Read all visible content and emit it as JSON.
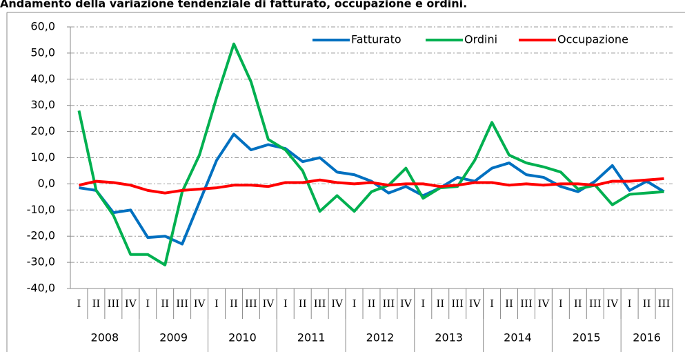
{
  "chart_data": {
    "type": "line",
    "title": "Andamento della variazione tendenziale di fatturato, occupazione e ordini.",
    "categories": [
      "I",
      "II",
      "III",
      "IV",
      "I",
      "II",
      "III",
      "IV",
      "I",
      "II",
      "III",
      "IV",
      "I",
      "II",
      "III",
      "IV",
      "I",
      "II",
      "III",
      "IV",
      "I",
      "II",
      "III",
      "IV",
      "I",
      "II",
      "III",
      "IV",
      "I",
      "II",
      "III",
      "IV",
      "I",
      "II",
      "III"
    ],
    "years": [
      "2008",
      "2009",
      "2010",
      "2011",
      "2012",
      "2013",
      "2014",
      "2015",
      "2016"
    ],
    "series": [
      {
        "name": "Fatturato",
        "color": "#0070c0",
        "values": [
          -1.5,
          -2.5,
          -11,
          -10,
          -20.5,
          -20,
          -23,
          -7,
          9,
          19,
          13,
          15,
          13.5,
          8.5,
          10,
          4.5,
          3.5,
          1,
          -3.5,
          -1,
          -4.5,
          -1.5,
          2.5,
          1,
          6,
          8,
          3.5,
          2.5,
          -1,
          -3,
          1,
          7,
          -2.5,
          1,
          -3
        ]
      },
      {
        "name": "Ordini",
        "color": "#00b050",
        "values": [
          28,
          -2.5,
          -12,
          -27,
          -27,
          -31,
          -3,
          11,
          33,
          53.5,
          39,
          17,
          13,
          5,
          -10.5,
          -4.5,
          -10.5,
          -3,
          -0.5,
          6,
          -5.5,
          -1.5,
          -1,
          9,
          23.5,
          11,
          8,
          6.5,
          4.5,
          -2,
          -0.5,
          -8,
          -4,
          -3.5,
          -3
        ]
      },
      {
        "name": "Occupazione",
        "color": "#ff0000",
        "values": [
          -0.5,
          1,
          0.5,
          -0.5,
          -2.5,
          -3.5,
          -2.5,
          -2,
          -1.5,
          -0.5,
          -0.5,
          -1,
          0.5,
          0.5,
          1.5,
          0.5,
          0,
          0.5,
          -0.5,
          0,
          0,
          -1,
          -0.5,
          0.5,
          0.5,
          -0.5,
          0,
          -0.5,
          0,
          0,
          -0.5,
          1,
          1,
          1.5,
          2
        ]
      }
    ],
    "ylim": [
      -40,
      60
    ],
    "yticks": [
      {
        "value": -40,
        "label": "-40,0"
      },
      {
        "value": -30,
        "label": "-30,0"
      },
      {
        "value": -20,
        "label": "-20,0"
      },
      {
        "value": -10,
        "label": "-10,0"
      },
      {
        "value": 0,
        "label": "0,0"
      },
      {
        "value": 10,
        "label": "10,0"
      },
      {
        "value": 20,
        "label": "20,0"
      },
      {
        "value": 30,
        "label": "30,0"
      },
      {
        "value": 40,
        "label": "40,0"
      },
      {
        "value": 50,
        "label": "50,0"
      },
      {
        "value": 60,
        "label": "60,0"
      }
    ],
    "grid": true,
    "legend": "top-right"
  }
}
